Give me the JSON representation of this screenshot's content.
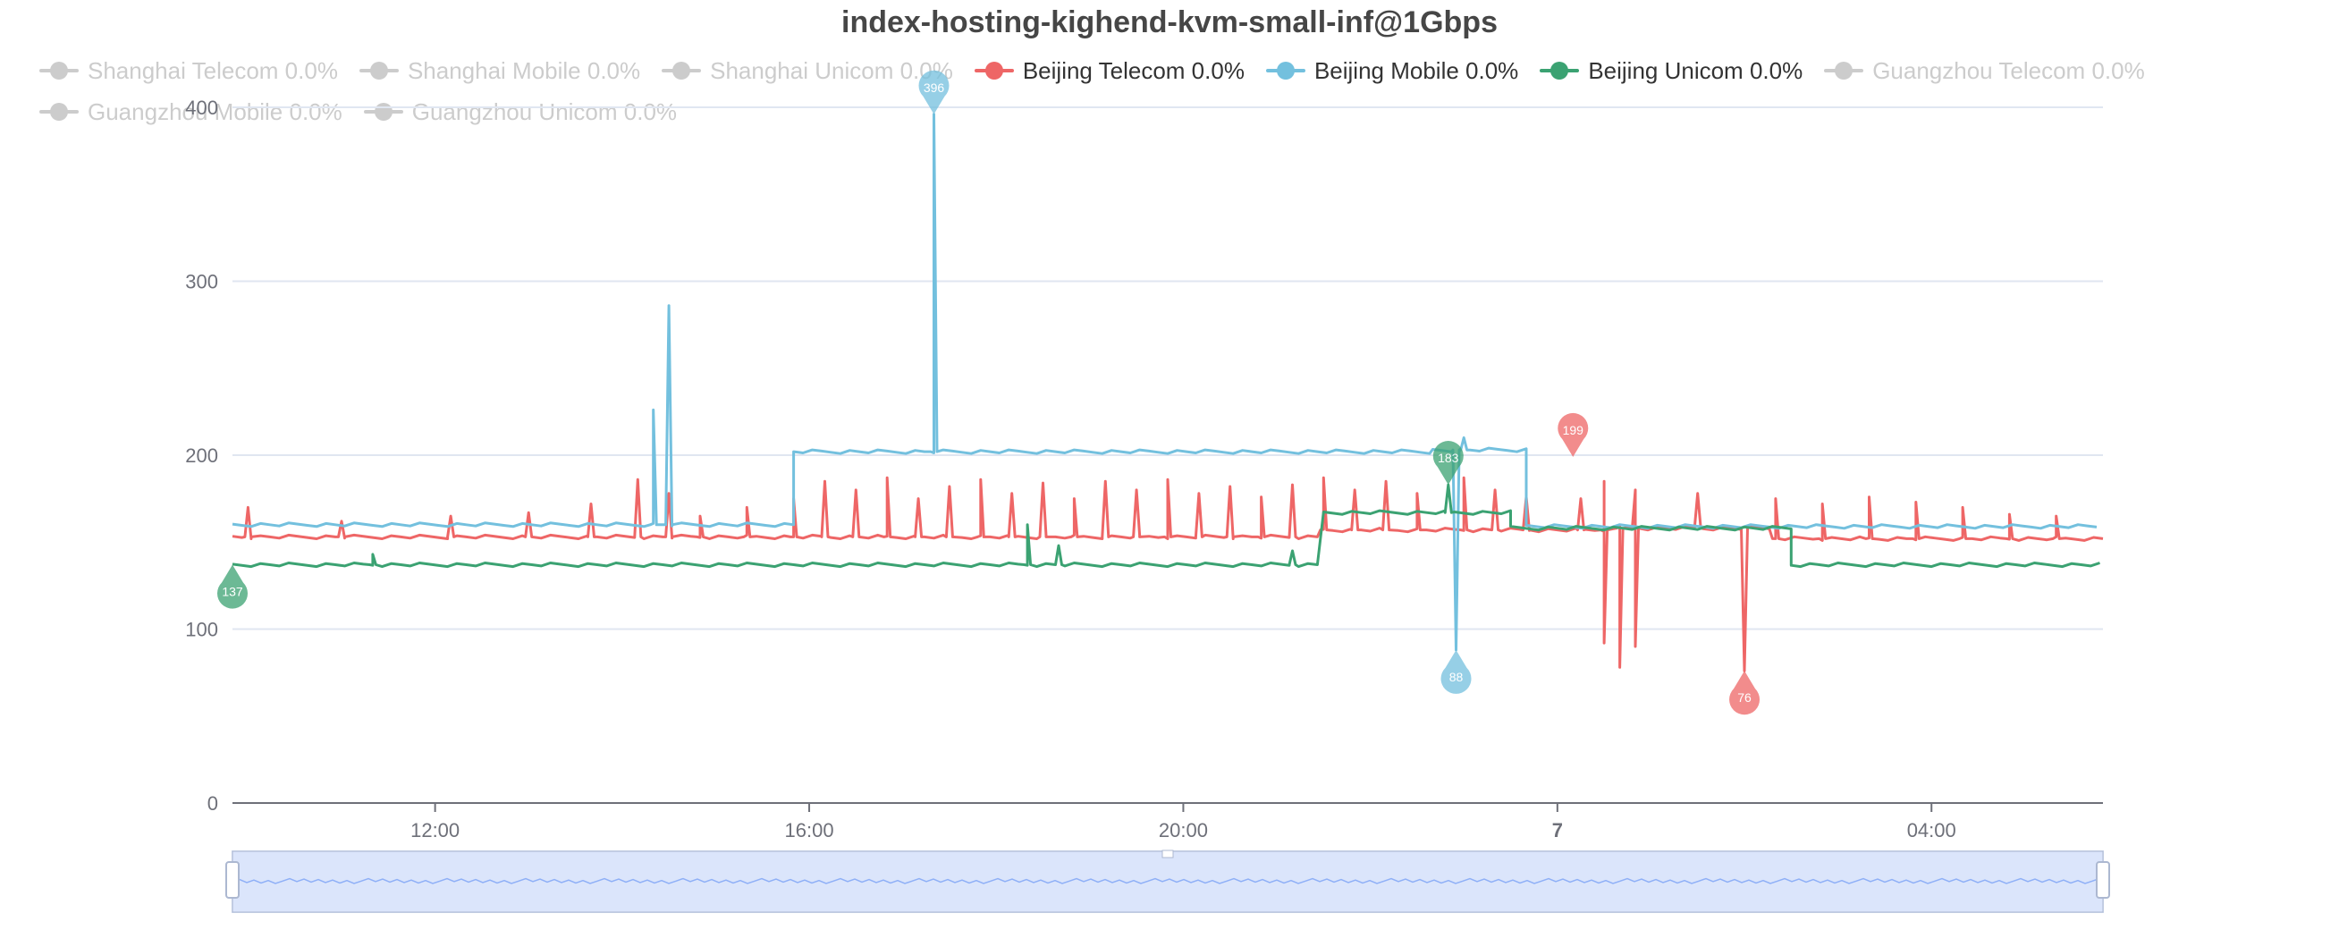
{
  "chart_data": {
    "type": "line",
    "title": "index-hosting-kighend-kvm-small-inf@1Gbps",
    "ylim": [
      0,
      400
    ],
    "yticks": [
      0,
      100,
      200,
      300,
      400
    ],
    "x_range": [
      "09:50",
      "05:50"
    ],
    "xticks": [
      {
        "t": "12:00",
        "label": "12:00",
        "bold": false
      },
      {
        "t": "16:00",
        "label": "16:00",
        "bold": false
      },
      {
        "t": "20:00",
        "label": "20:00",
        "bold": false
      },
      {
        "t": "24:00",
        "label": "7",
        "bold": true
      },
      {
        "t": "28:00",
        "label": "04:00",
        "bold": false
      }
    ],
    "grid": true,
    "legend_position": "top",
    "legend": [
      {
        "name": "Shanghai Telecom 0.0%",
        "active": false,
        "color": "#cccccc"
      },
      {
        "name": "Shanghai Mobile 0.0%",
        "active": false,
        "color": "#cccccc"
      },
      {
        "name": "Shanghai Unicom 0.0%",
        "active": false,
        "color": "#cccccc"
      },
      {
        "name": "Beijing Telecom 0.0%",
        "active": true,
        "color": "#ee6666"
      },
      {
        "name": "Beijing Mobile 0.0%",
        "active": true,
        "color": "#73c0de"
      },
      {
        "name": "Beijing Unicom 0.0%",
        "active": true,
        "color": "#3ba272"
      },
      {
        "name": "Guangzhou Telecom 0.0%",
        "active": false,
        "color": "#cccccc"
      },
      {
        "name": "Guangzhou Mobile 0.0%",
        "active": false,
        "color": "#cccccc"
      },
      {
        "name": "Guangzhou Unicom 0.0%",
        "active": false,
        "color": "#cccccc"
      }
    ],
    "series": [
      {
        "name": "Beijing Telecom",
        "color": "#ee6666",
        "baseline_segments": [
          {
            "from": "09:50",
            "to": "21:30",
            "y": 153
          },
          {
            "from": "21:30",
            "to": "24:40",
            "y": 157
          },
          {
            "from": "24:40",
            "to": "26:20",
            "y": 158
          },
          {
            "from": "26:20",
            "to": "29:50",
            "y": 152
          }
        ],
        "spikes": [
          [
            "10:00",
            170
          ],
          [
            "11:00",
            162
          ],
          [
            "12:10",
            165
          ],
          [
            "13:00",
            167
          ],
          [
            "13:40",
            172
          ],
          [
            "14:10",
            186
          ],
          [
            "14:30",
            178
          ],
          [
            "14:50",
            165
          ],
          [
            "15:20",
            170
          ],
          [
            "15:50",
            175
          ],
          [
            "16:10",
            185
          ],
          [
            "16:30",
            180
          ],
          [
            "16:50",
            187
          ],
          [
            "17:10",
            175
          ],
          [
            "17:30",
            182
          ],
          [
            "17:50",
            186
          ],
          [
            "18:10",
            178
          ],
          [
            "18:30",
            184
          ],
          [
            "18:50",
            175
          ],
          [
            "19:10",
            185
          ],
          [
            "19:30",
            180
          ],
          [
            "19:50",
            186
          ],
          [
            "20:10",
            178
          ],
          [
            "20:30",
            182
          ],
          [
            "20:50",
            176
          ],
          [
            "21:10",
            183
          ],
          [
            "21:30",
            187
          ],
          [
            "21:50",
            180
          ],
          [
            "22:10",
            185
          ],
          [
            "22:30",
            178
          ],
          [
            "23:00",
            187
          ],
          [
            "23:20",
            180
          ],
          [
            "23:40",
            176
          ],
          [
            "24:15",
            175
          ],
          [
            "24:30",
            185
          ],
          [
            "24:50",
            180
          ],
          [
            "25:30",
            178
          ],
          [
            "26:20",
            175
          ],
          [
            "26:50",
            172
          ],
          [
            "27:20",
            176
          ],
          [
            "27:50",
            173
          ],
          [
            "28:20",
            170
          ],
          [
            "28:50",
            166
          ],
          [
            "29:20",
            165
          ]
        ],
        "dips": [
          [
            "24:30",
            92
          ],
          [
            "24:40",
            78
          ],
          [
            "24:50",
            90
          ],
          [
            "26:00",
            76
          ]
        ],
        "peak": {
          "t": "24:10",
          "y": 199
        }
      },
      {
        "name": "Beijing Mobile",
        "color": "#73c0de",
        "baseline_segments": [
          {
            "from": "09:50",
            "to": "15:50",
            "y": 160
          },
          {
            "from": "15:50",
            "to": "22:40",
            "y": 202
          },
          {
            "from": "22:40",
            "to": "23:40",
            "y": 203
          },
          {
            "from": "23:40",
            "to": "29:50",
            "y": 159
          }
        ],
        "spikes": [
          [
            "14:20",
            226
          ],
          [
            "14:30",
            286
          ],
          [
            "17:20",
            396
          ],
          [
            "23:00",
            210
          ]
        ],
        "dips": [
          [
            "22:55",
            88
          ]
        ]
      },
      {
        "name": "Beijing Unicom",
        "color": "#3ba272",
        "baseline_segments": [
          {
            "from": "09:50",
            "to": "21:30",
            "y": 137
          },
          {
            "from": "21:30",
            "to": "23:30",
            "y": 167
          },
          {
            "from": "23:30",
            "to": "26:30",
            "y": 158
          },
          {
            "from": "26:30",
            "to": "29:50",
            "y": 137
          }
        ],
        "spikes": [
          [
            "11:20",
            143
          ],
          [
            "18:20",
            160
          ],
          [
            "18:40",
            148
          ],
          [
            "21:10",
            145
          ],
          [
            "22:50",
            183
          ]
        ],
        "dips": []
      }
    ],
    "mark_points": [
      {
        "label": "396",
        "t": "17:20",
        "y": 396,
        "color": "#73c0de",
        "dir": "up"
      },
      {
        "label": "137",
        "t": "09:50",
        "y": 137,
        "color": "#3ba272",
        "dir": "down"
      },
      {
        "label": "183",
        "t": "22:50",
        "y": 183,
        "color": "#3ba272",
        "dir": "up"
      },
      {
        "label": "199",
        "t": "24:10",
        "y": 199,
        "color": "#ee6666",
        "dir": "up"
      },
      {
        "label": "88",
        "t": "22:55",
        "y": 88,
        "color": "#73c0de",
        "dir": "down"
      },
      {
        "label": "76",
        "t": "26:00",
        "y": 76,
        "color": "#ee6666",
        "dir": "down"
      }
    ],
    "data_zoom": {
      "start_percent": 0,
      "end_percent": 100
    }
  }
}
